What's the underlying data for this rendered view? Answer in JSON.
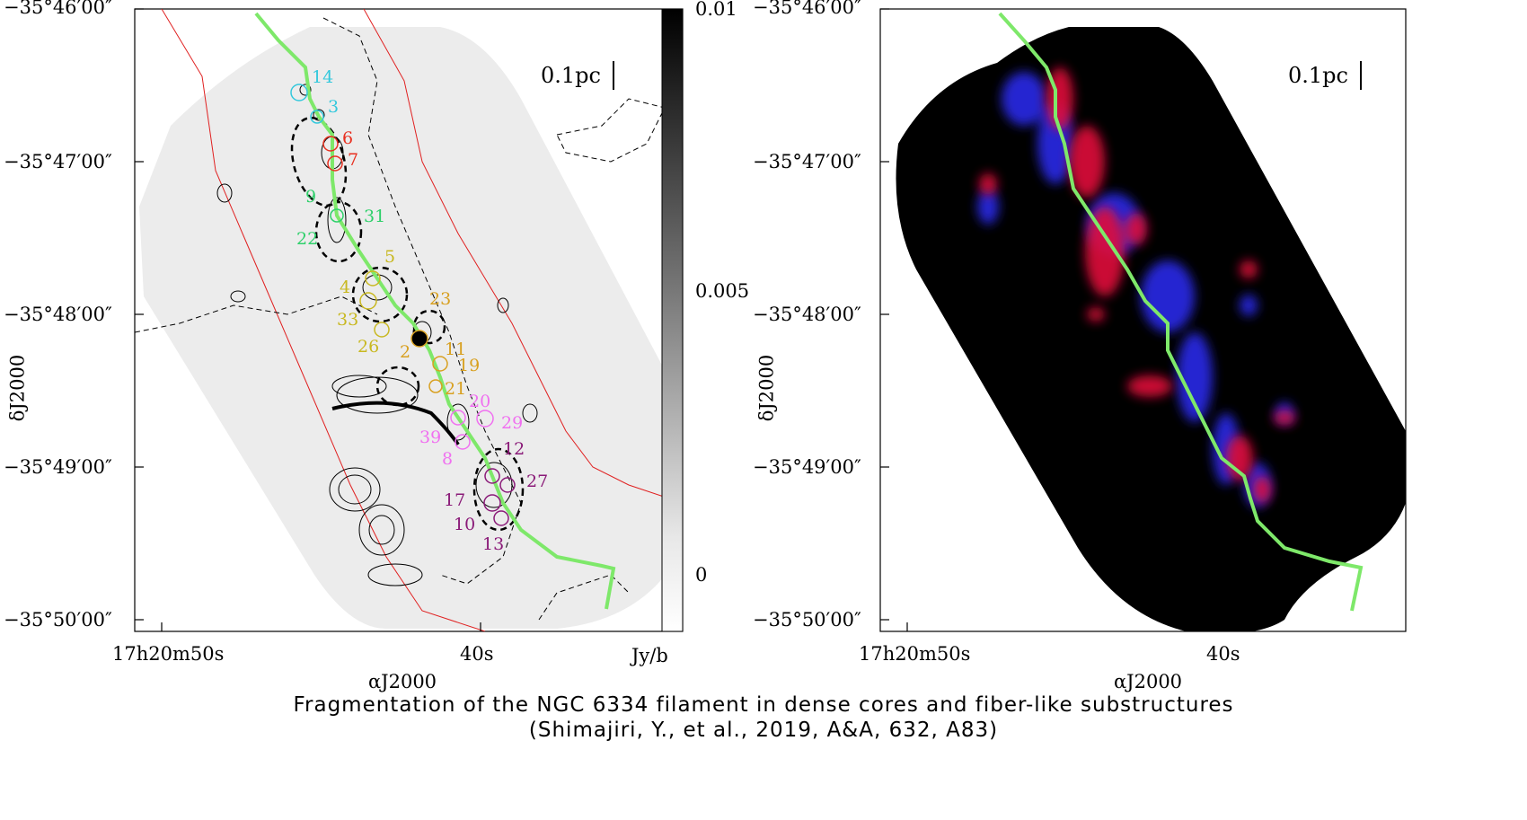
{
  "left_panel": {
    "y_ticks": [
      "−35°46′00″",
      "−35°47′00″",
      "−35°48′00″",
      "−35°49′00″",
      "−35°50′00″"
    ],
    "x_ticks": [
      "17h20m50s",
      "40s"
    ],
    "x_label": "αJ2000",
    "y_label": "δJ2000",
    "scale_bar": "0.1pc",
    "colorbar": {
      "ticks": [
        "0.01",
        "0.005",
        "0"
      ],
      "unit": "Jy/b"
    },
    "core_labels": [
      {
        "text": "14",
        "color": "#33c8dc"
      },
      {
        "text": "3",
        "color": "#33c8dc"
      },
      {
        "text": "6",
        "color": "#e83020"
      },
      {
        "text": "7",
        "color": "#e83020"
      },
      {
        "text": "9",
        "color": "#2ed06a"
      },
      {
        "text": "31",
        "color": "#2ed06a"
      },
      {
        "text": "22",
        "color": "#2ed06a"
      },
      {
        "text": "5",
        "color": "#c8b820"
      },
      {
        "text": "4",
        "color": "#c8b820"
      },
      {
        "text": "33",
        "color": "#c8b820"
      },
      {
        "text": "26",
        "color": "#c8b820"
      },
      {
        "text": "23",
        "color": "#d8a020"
      },
      {
        "text": "2",
        "color": "#d8a020"
      },
      {
        "text": "11",
        "color": "#d8a020"
      },
      {
        "text": "19",
        "color": "#d8a020"
      },
      {
        "text": "21",
        "color": "#d8a020"
      },
      {
        "text": "20",
        "color": "#f070f0"
      },
      {
        "text": "29",
        "color": "#f070f0"
      },
      {
        "text": "39",
        "color": "#f070f0"
      },
      {
        "text": "8",
        "color": "#f070f0"
      },
      {
        "text": "12",
        "color": "#8a1a78"
      },
      {
        "text": "27",
        "color": "#8a1a78"
      },
      {
        "text": "17",
        "color": "#8a1a78"
      },
      {
        "text": "10",
        "color": "#8a1a78"
      },
      {
        "text": "13",
        "color": "#8a1a78"
      }
    ]
  },
  "right_panel": {
    "y_ticks": [
      "−35°46′00″",
      "−35°47′00″",
      "−35°48′00″",
      "−35°49′00″",
      "−35°50′00″"
    ],
    "x_ticks": [
      "17h20m50s",
      "40s"
    ],
    "x_label": "αJ2000",
    "y_label": "δJ2000",
    "scale_bar": "0.1pc"
  },
  "caption": {
    "line1": "Fragmentation of the NGC 6334 filament in dense cores and fiber-like substructures",
    "line2": "(Shimajiri, Y., et al., 2019, A&A, 632, A83)"
  },
  "colors": {
    "filament": "#7ee86a",
    "fiber_red": "#e0103a",
    "fiber_blue": "#2a2ae8",
    "contour": "#000000",
    "boundary": "#e02020"
  }
}
